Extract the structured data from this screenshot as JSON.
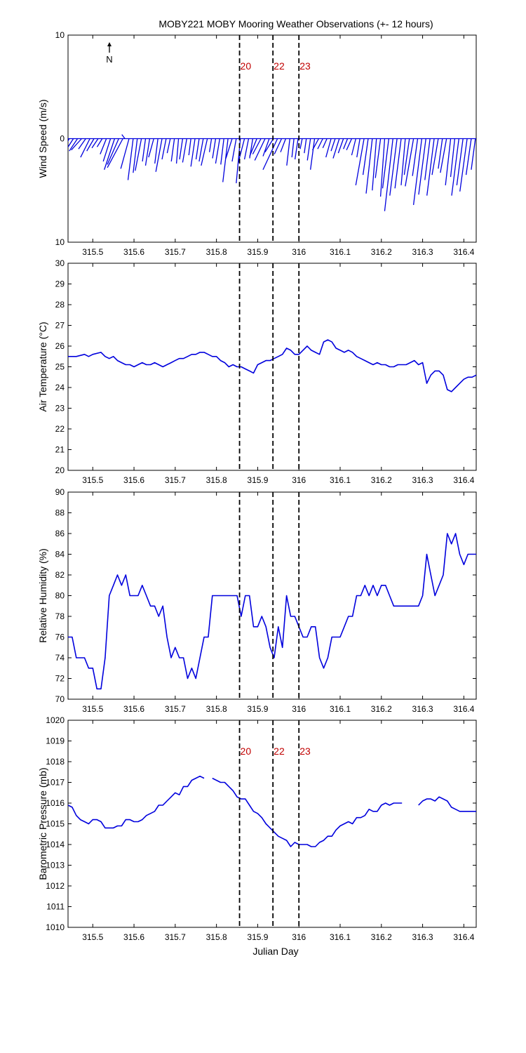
{
  "title": "MOBY221 MOBY Mooring Weather Observations (+- 12 hours)",
  "colors": {
    "series": "#0000dd",
    "marker_label": "#c00000",
    "axis": "#000000"
  },
  "x_axis": {
    "label": "Julian Day",
    "range": [
      315.44,
      316.43
    ],
    "ticks": [
      315.5,
      315.6,
      315.7,
      315.8,
      315.9,
      316,
      316.1,
      316.2,
      316.3,
      316.4
    ],
    "tick_labels": [
      "315.5",
      "315.6",
      "315.7",
      "315.8",
      "315.9",
      "316",
      "316.1",
      "316.2",
      "316.3",
      "316.4"
    ]
  },
  "markers": [
    {
      "label": "20",
      "x": 315.856
    },
    {
      "label": "22",
      "x": 315.937
    },
    {
      "label": "23",
      "x": 316.0
    }
  ],
  "north_label": "N",
  "chart_data": [
    {
      "type": "quiver",
      "ylabel": "Wind Speed (m/s)",
      "ylim": [
        -10,
        10
      ],
      "y_tick_labels": [
        "10",
        "0",
        "10"
      ],
      "y_ticks": [
        10,
        0,
        -10
      ],
      "show_markers_labels": true,
      "vectors": [
        [
          315.443,
          -1.0,
          -1.8
        ],
        [
          315.453,
          -0.9,
          -1.4
        ],
        [
          315.463,
          -0.8,
          -1.2
        ],
        [
          315.473,
          -1.0,
          -1.1
        ],
        [
          315.483,
          -0.7,
          -1.0
        ],
        [
          315.493,
          -0.9,
          -1.8
        ],
        [
          315.503,
          -0.7,
          -1.2
        ],
        [
          315.513,
          -0.6,
          -0.9
        ],
        [
          315.523,
          -0.5,
          -0.8
        ],
        [
          315.533,
          -0.6,
          -1.5
        ],
        [
          315.543,
          -0.7,
          -2.2
        ],
        [
          315.553,
          -1.0,
          -3.0
        ],
        [
          315.563,
          -1.1,
          -2.5
        ],
        [
          315.573,
          -1.5,
          -2.8
        ],
        [
          315.578,
          -0.3,
          0.4
        ],
        [
          315.588,
          -0.8,
          -2.9
        ],
        [
          315.598,
          -0.5,
          -4.0
        ],
        [
          315.608,
          -0.4,
          -3.3
        ],
        [
          315.618,
          -0.6,
          -3.1
        ],
        [
          315.628,
          -0.3,
          -2.2
        ],
        [
          315.638,
          -0.4,
          -2.6
        ],
        [
          315.648,
          -0.5,
          -1.8
        ],
        [
          315.658,
          -0.3,
          -2.4
        ],
        [
          315.668,
          -0.6,
          -3.2
        ],
        [
          315.678,
          -0.4,
          -2.0
        ],
        [
          315.688,
          -0.3,
          -1.4
        ],
        [
          315.698,
          -0.3,
          -2.2
        ],
        [
          315.708,
          -0.2,
          -2.4
        ],
        [
          315.718,
          -0.3,
          -2.0
        ],
        [
          315.728,
          -0.4,
          -2.3
        ],
        [
          315.738,
          -0.2,
          -1.6
        ],
        [
          315.748,
          -0.4,
          -2.7
        ],
        [
          315.758,
          -0.3,
          -2.0
        ],
        [
          315.768,
          -0.4,
          -2.2
        ],
        [
          315.778,
          -0.6,
          -2.6
        ],
        [
          315.788,
          -0.2,
          -1.3
        ],
        [
          315.798,
          -0.3,
          -1.9
        ],
        [
          315.808,
          -0.4,
          -2.4
        ],
        [
          315.818,
          -0.3,
          -2.5
        ],
        [
          315.828,
          -0.5,
          -4.2
        ],
        [
          315.838,
          -0.6,
          -1.9
        ],
        [
          315.848,
          -0.4,
          -2.2
        ],
        [
          315.858,
          -0.4,
          -4.3
        ],
        [
          315.868,
          -0.6,
          -2.3
        ],
        [
          315.878,
          -0.4,
          -2.0
        ],
        [
          315.888,
          -0.3,
          -1.9
        ],
        [
          315.898,
          -0.7,
          -1.7
        ],
        [
          315.908,
          -0.8,
          -1.5
        ],
        [
          315.918,
          -1.0,
          -2.1
        ],
        [
          315.928,
          -0.6,
          -1.7
        ],
        [
          315.938,
          -0.8,
          -1.3
        ],
        [
          315.948,
          -1.4,
          -3.0
        ],
        [
          315.958,
          -0.7,
          -1.5
        ],
        [
          315.968,
          -0.5,
          -1.3
        ],
        [
          315.978,
          -0.3,
          -2.6
        ],
        [
          315.988,
          -0.2,
          -1.8
        ],
        [
          315.998,
          -0.3,
          -2.0
        ],
        [
          316.008,
          -0.2,
          -1.0
        ],
        [
          316.018,
          -0.2,
          -1.4
        ],
        [
          316.028,
          -0.3,
          -2.1
        ],
        [
          316.038,
          -0.4,
          -3.0
        ],
        [
          316.048,
          -0.6,
          -1.1
        ],
        [
          316.058,
          -0.5,
          -1.0
        ],
        [
          316.068,
          -0.4,
          -0.9
        ],
        [
          316.078,
          -0.5,
          -1.8
        ],
        [
          316.088,
          -0.4,
          -1.2
        ],
        [
          316.098,
          -0.6,
          -1.9
        ],
        [
          316.108,
          -0.5,
          -1.4
        ],
        [
          316.118,
          -0.4,
          -1.0
        ],
        [
          316.128,
          -0.5,
          -1.1
        ],
        [
          316.138,
          -0.4,
          -1.6
        ],
        [
          316.148,
          -0.3,
          -1.8
        ],
        [
          316.158,
          -0.8,
          -4.5
        ],
        [
          316.168,
          -0.5,
          -3.5
        ],
        [
          316.178,
          -0.6,
          -5.3
        ],
        [
          316.188,
          -0.4,
          -5.0
        ],
        [
          316.198,
          -0.5,
          -3.8
        ],
        [
          316.208,
          -0.4,
          -5.6
        ],
        [
          316.218,
          -0.6,
          -4.8
        ],
        [
          316.228,
          -0.8,
          -7.0
        ],
        [
          316.238,
          -0.7,
          -5.5
        ],
        [
          316.248,
          -0.6,
          -4.8
        ],
        [
          316.258,
          -0.4,
          -4.5
        ],
        [
          316.268,
          -0.5,
          -3.5
        ],
        [
          316.278,
          -0.8,
          -4.6
        ],
        [
          316.288,
          -0.5,
          -3.6
        ],
        [
          316.298,
          -0.8,
          -6.4
        ],
        [
          316.308,
          -0.7,
          -5.4
        ],
        [
          316.318,
          -0.5,
          -4.0
        ],
        [
          316.328,
          -0.7,
          -5.5
        ],
        [
          316.338,
          -0.6,
          -3.5
        ],
        [
          316.348,
          -0.4,
          -2.9
        ],
        [
          316.358,
          -0.6,
          -3.3
        ],
        [
          316.368,
          -0.5,
          -4.5
        ],
        [
          316.378,
          -0.4,
          -3.7
        ],
        [
          316.388,
          -0.7,
          -5.5
        ],
        [
          316.398,
          -0.6,
          -4.5
        ],
        [
          316.408,
          -0.7,
          -5.1
        ],
        [
          316.418,
          -0.5,
          -3.5
        ],
        [
          316.428,
          -0.4,
          -3.0
        ]
      ]
    },
    {
      "type": "line",
      "ylabel": "Air Temperature (°C)",
      "ylim": [
        20,
        30
      ],
      "y_ticks": [
        20,
        21,
        22,
        23,
        24,
        25,
        26,
        27,
        28,
        29,
        30
      ],
      "y_tick_labels": [
        "20",
        "21",
        "22",
        "23",
        "24",
        "25",
        "26",
        "27",
        "28",
        "29",
        "30"
      ],
      "show_markers_labels": false,
      "x": [
        315.44,
        315.46,
        315.48,
        315.49,
        315.5,
        315.52,
        315.53,
        315.54,
        315.55,
        315.56,
        315.57,
        315.58,
        315.59,
        315.6,
        315.61,
        315.62,
        315.63,
        315.64,
        315.65,
        315.66,
        315.67,
        315.68,
        315.69,
        315.7,
        315.71,
        315.72,
        315.73,
        315.74,
        315.75,
        315.76,
        315.77,
        315.78,
        315.79,
        315.8,
        315.81,
        315.82,
        315.83,
        315.84,
        315.85,
        315.86,
        315.87,
        315.88,
        315.89,
        315.9,
        315.91,
        315.92,
        315.93,
        315.94,
        315.95,
        315.96,
        315.97,
        315.98,
        315.99,
        316.0,
        316.01,
        316.02,
        316.03,
        316.04,
        316.05,
        316.06,
        316.07,
        316.08,
        316.09,
        316.1,
        316.11,
        316.12,
        316.13,
        316.14,
        316.15,
        316.16,
        316.17,
        316.18,
        316.19,
        316.2,
        316.21,
        316.22,
        316.23,
        316.24,
        316.25,
        316.26,
        316.27,
        316.28,
        316.29,
        316.3,
        316.31,
        316.32,
        316.33,
        316.34,
        316.35,
        316.36,
        316.37,
        316.38,
        316.39,
        316.4,
        316.41,
        316.42,
        316.43
      ],
      "y": [
        25.5,
        25.5,
        25.6,
        25.5,
        25.6,
        25.7,
        25.5,
        25.4,
        25.5,
        25.3,
        25.2,
        25.1,
        25.1,
        25.0,
        25.1,
        25.2,
        25.1,
        25.1,
        25.2,
        25.1,
        25.0,
        25.1,
        25.2,
        25.3,
        25.4,
        25.4,
        25.5,
        25.6,
        25.6,
        25.7,
        25.7,
        25.6,
        25.5,
        25.5,
        25.3,
        25.2,
        25.0,
        25.1,
        25.0,
        25.0,
        24.9,
        24.8,
        24.7,
        25.1,
        25.2,
        25.3,
        25.3,
        25.4,
        25.5,
        25.6,
        25.9,
        25.8,
        25.6,
        25.6,
        25.8,
        26.0,
        25.8,
        25.7,
        25.6,
        26.2,
        26.3,
        26.2,
        25.9,
        25.8,
        25.7,
        25.8,
        25.7,
        25.5,
        25.4,
        25.3,
        25.2,
        25.1,
        25.2,
        25.1,
        25.1,
        25.0,
        25.0,
        25.1,
        25.1,
        25.1,
        25.2,
        25.3,
        25.1,
        25.2,
        24.2,
        24.6,
        24.8,
        24.8,
        24.6,
        23.9,
        23.8,
        24.0,
        24.2,
        24.4,
        24.5,
        24.5,
        24.6
      ]
    },
    {
      "type": "line",
      "ylabel": "Relative Humidity (%)",
      "ylim": [
        70,
        90
      ],
      "y_ticks": [
        70,
        72,
        74,
        76,
        78,
        80,
        82,
        84,
        86,
        88,
        90
      ],
      "y_tick_labels": [
        "70",
        "72",
        "74",
        "76",
        "78",
        "80",
        "82",
        "84",
        "86",
        "88",
        "90"
      ],
      "show_markers_labels": false,
      "x": [
        315.44,
        315.45,
        315.46,
        315.47,
        315.48,
        315.49,
        315.5,
        315.51,
        315.52,
        315.53,
        315.54,
        315.55,
        315.56,
        315.57,
        315.58,
        315.59,
        315.6,
        315.61,
        315.62,
        315.63,
        315.64,
        315.65,
        315.66,
        315.67,
        315.68,
        315.69,
        315.7,
        315.71,
        315.72,
        315.73,
        315.74,
        315.75,
        315.76,
        315.77,
        315.78,
        315.79,
        315.8,
        315.81,
        315.82,
        315.83,
        315.84,
        315.85,
        315.86,
        315.87,
        315.88,
        315.89,
        315.9,
        315.91,
        315.92,
        315.93,
        315.94,
        315.95,
        315.96,
        315.97,
        315.98,
        315.99,
        316.0,
        316.01,
        316.02,
        316.03,
        316.04,
        316.05,
        316.06,
        316.07,
        316.08,
        316.09,
        316.1,
        316.11,
        316.12,
        316.13,
        316.14,
        316.15,
        316.16,
        316.17,
        316.18,
        316.19,
        316.2,
        316.21,
        316.22,
        316.23,
        316.24,
        316.25,
        316.26,
        316.27,
        316.28,
        316.29,
        316.3,
        316.31,
        316.32,
        316.33,
        316.34,
        316.35,
        316.36,
        316.37,
        316.38,
        316.39,
        316.4,
        316.41,
        316.42,
        316.43
      ],
      "y": [
        76,
        76,
        74,
        74,
        74,
        73,
        73,
        71,
        71,
        74,
        80,
        81,
        82,
        81,
        82,
        80,
        80,
        80,
        81,
        80,
        79,
        79,
        78,
        79,
        76,
        74,
        75,
        74,
        74,
        72,
        73,
        72,
        74,
        76,
        76,
        80,
        80,
        80,
        80,
        80,
        80,
        80,
        78,
        80,
        80,
        77,
        77,
        78,
        77,
        75,
        74,
        77,
        75,
        80,
        78,
        78,
        77,
        76,
        76,
        77,
        77,
        74,
        73,
        74,
        76,
        76,
        76,
        77,
        78,
        78,
        80,
        80,
        81,
        80,
        81,
        80,
        81,
        81,
        80,
        79,
        79,
        79,
        79,
        79,
        79,
        79,
        80,
        84,
        82,
        80,
        81,
        82,
        86,
        85,
        86,
        84,
        83,
        84,
        84,
        84
      ]
    },
    {
      "type": "line",
      "ylabel": "Barometric Pressure (mb)",
      "xlabel": "Julian Day",
      "ylim": [
        1010,
        1020
      ],
      "y_ticks": [
        1010,
        1011,
        1012,
        1013,
        1014,
        1015,
        1016,
        1017,
        1018,
        1019,
        1020
      ],
      "y_tick_labels": [
        "1010",
        "1011",
        "1012",
        "1013",
        "1014",
        "1015",
        "1016",
        "1017",
        "1018",
        "1019",
        "1020"
      ],
      "show_markers_labels": true,
      "x": [
        315.44,
        315.45,
        315.46,
        315.47,
        315.48,
        315.49,
        315.5,
        315.51,
        315.52,
        315.53,
        315.54,
        315.55,
        315.56,
        315.57,
        315.58,
        315.59,
        315.6,
        315.61,
        315.62,
        315.63,
        315.64,
        315.65,
        315.66,
        315.67,
        315.68,
        315.69,
        315.7,
        315.71,
        315.72,
        315.73,
        315.74,
        315.75,
        315.76,
        315.77,
        315.78,
        315.79,
        315.8,
        315.81,
        315.82,
        315.83,
        315.84,
        315.85,
        315.86,
        315.87,
        315.88,
        315.89,
        315.9,
        315.91,
        315.92,
        315.93,
        315.94,
        315.95,
        315.96,
        315.97,
        315.98,
        315.99,
        316.0,
        316.01,
        316.02,
        316.03,
        316.04,
        316.05,
        316.06,
        316.07,
        316.08,
        316.09,
        316.1,
        316.11,
        316.12,
        316.13,
        316.14,
        316.15,
        316.16,
        316.17,
        316.18,
        316.19,
        316.2,
        316.21,
        316.22,
        316.23,
        316.24,
        316.25,
        316.26,
        316.27,
        316.28,
        316.29,
        316.3,
        316.31,
        316.32,
        316.33,
        316.34,
        316.35,
        316.36,
        316.37,
        316.38,
        316.39,
        316.4,
        316.41,
        316.42,
        316.43
      ],
      "y": [
        1015.9,
        1015.8,
        1015.4,
        1015.2,
        1015.1,
        1015.0,
        1015.2,
        1015.2,
        1015.1,
        1014.8,
        1014.8,
        1014.8,
        1014.9,
        1014.9,
        1015.2,
        1015.2,
        1015.1,
        1015.1,
        1015.2,
        1015.4,
        1015.5,
        1015.6,
        1015.9,
        1015.9,
        1016.1,
        1016.3,
        1016.5,
        1016.4,
        1016.8,
        1016.8,
        1017.1,
        1017.2,
        1017.3,
        1017.2,
        null,
        1017.2,
        1017.1,
        1017.0,
        1017.0,
        1016.8,
        1016.6,
        1016.3,
        1016.2,
        1016.2,
        1015.9,
        1015.6,
        1015.5,
        1015.3,
        1015.0,
        1014.8,
        1014.6,
        1014.4,
        1014.3,
        1014.2,
        1013.9,
        1014.1,
        1014.0,
        1014.0,
        1014.0,
        1013.9,
        1013.9,
        1014.1,
        1014.2,
        1014.4,
        1014.4,
        1014.7,
        1014.9,
        1015.0,
        1015.1,
        1015.0,
        1015.3,
        1015.3,
        1015.4,
        1015.7,
        1015.6,
        1015.6,
        1015.9,
        1016.0,
        1015.9,
        1016.0,
        1016.0,
        1016.0,
        null,
        null,
        null,
        1015.9,
        1016.1,
        1016.2,
        1016.2,
        1016.1,
        1016.3,
        1016.2,
        1016.1,
        1015.8,
        1015.7,
        1015.6,
        1015.6,
        1015.6,
        1015.6,
        1015.6
      ]
    }
  ]
}
